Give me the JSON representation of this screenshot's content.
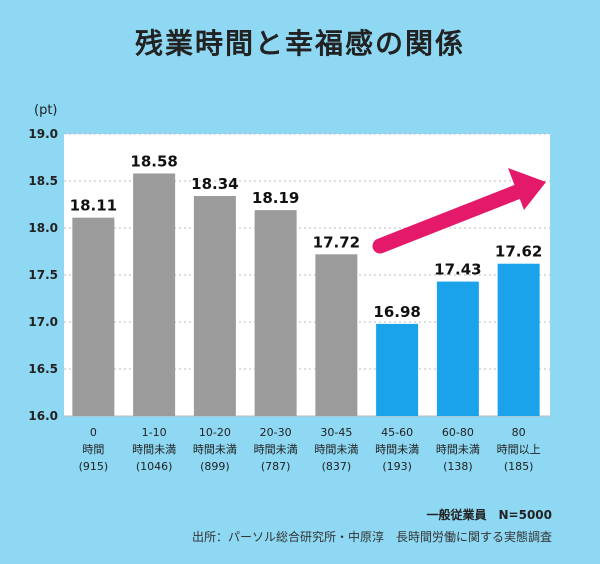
{
  "chart_data": {
    "type": "bar",
    "title": "残業時間と幸福感の関係",
    "unit": "(pt)",
    "ylim": [
      16.0,
      19.0
    ],
    "yticks": [
      "16.0",
      "16.5",
      "17.0",
      "17.5",
      "18.0",
      "18.5",
      "19.0"
    ],
    "categories": [
      {
        "range": "0",
        "hours": "時間",
        "n": "(915)"
      },
      {
        "range": "1-10",
        "hours": "時間未満",
        "n": "(1046)"
      },
      {
        "range": "10-20",
        "hours": "時間未満",
        "n": "(899)"
      },
      {
        "range": "20-30",
        "hours": "時間未満",
        "n": "(787)"
      },
      {
        "range": "30-45",
        "hours": "時間未満",
        "n": "(837)"
      },
      {
        "range": "45-60",
        "hours": "時間未満",
        "n": "(193)"
      },
      {
        "range": "60-80",
        "hours": "時間未満",
        "n": "(138)"
      },
      {
        "range": "80",
        "hours": "時間以上",
        "n": "(185)"
      }
    ],
    "values": [
      18.11,
      18.58,
      18.34,
      18.19,
      17.72,
      16.98,
      17.43,
      17.62
    ],
    "value_labels": [
      "18.11",
      "18.58",
      "18.34",
      "18.19",
      "17.72",
      "16.98",
      "17.43",
      "17.62"
    ],
    "bar_colors": [
      "#9b9b9b",
      "#9b9b9b",
      "#9b9b9b",
      "#9b9b9b",
      "#9b9b9b",
      "#1aa3ea",
      "#1aa3ea",
      "#1aa3ea"
    ],
    "arrow_color": "#e5196a",
    "grid": true
  },
  "note": "一般従業員　N=5000",
  "source": "出所：パーソル総合研究所・中原淳　長時間労働に関する実態調査"
}
